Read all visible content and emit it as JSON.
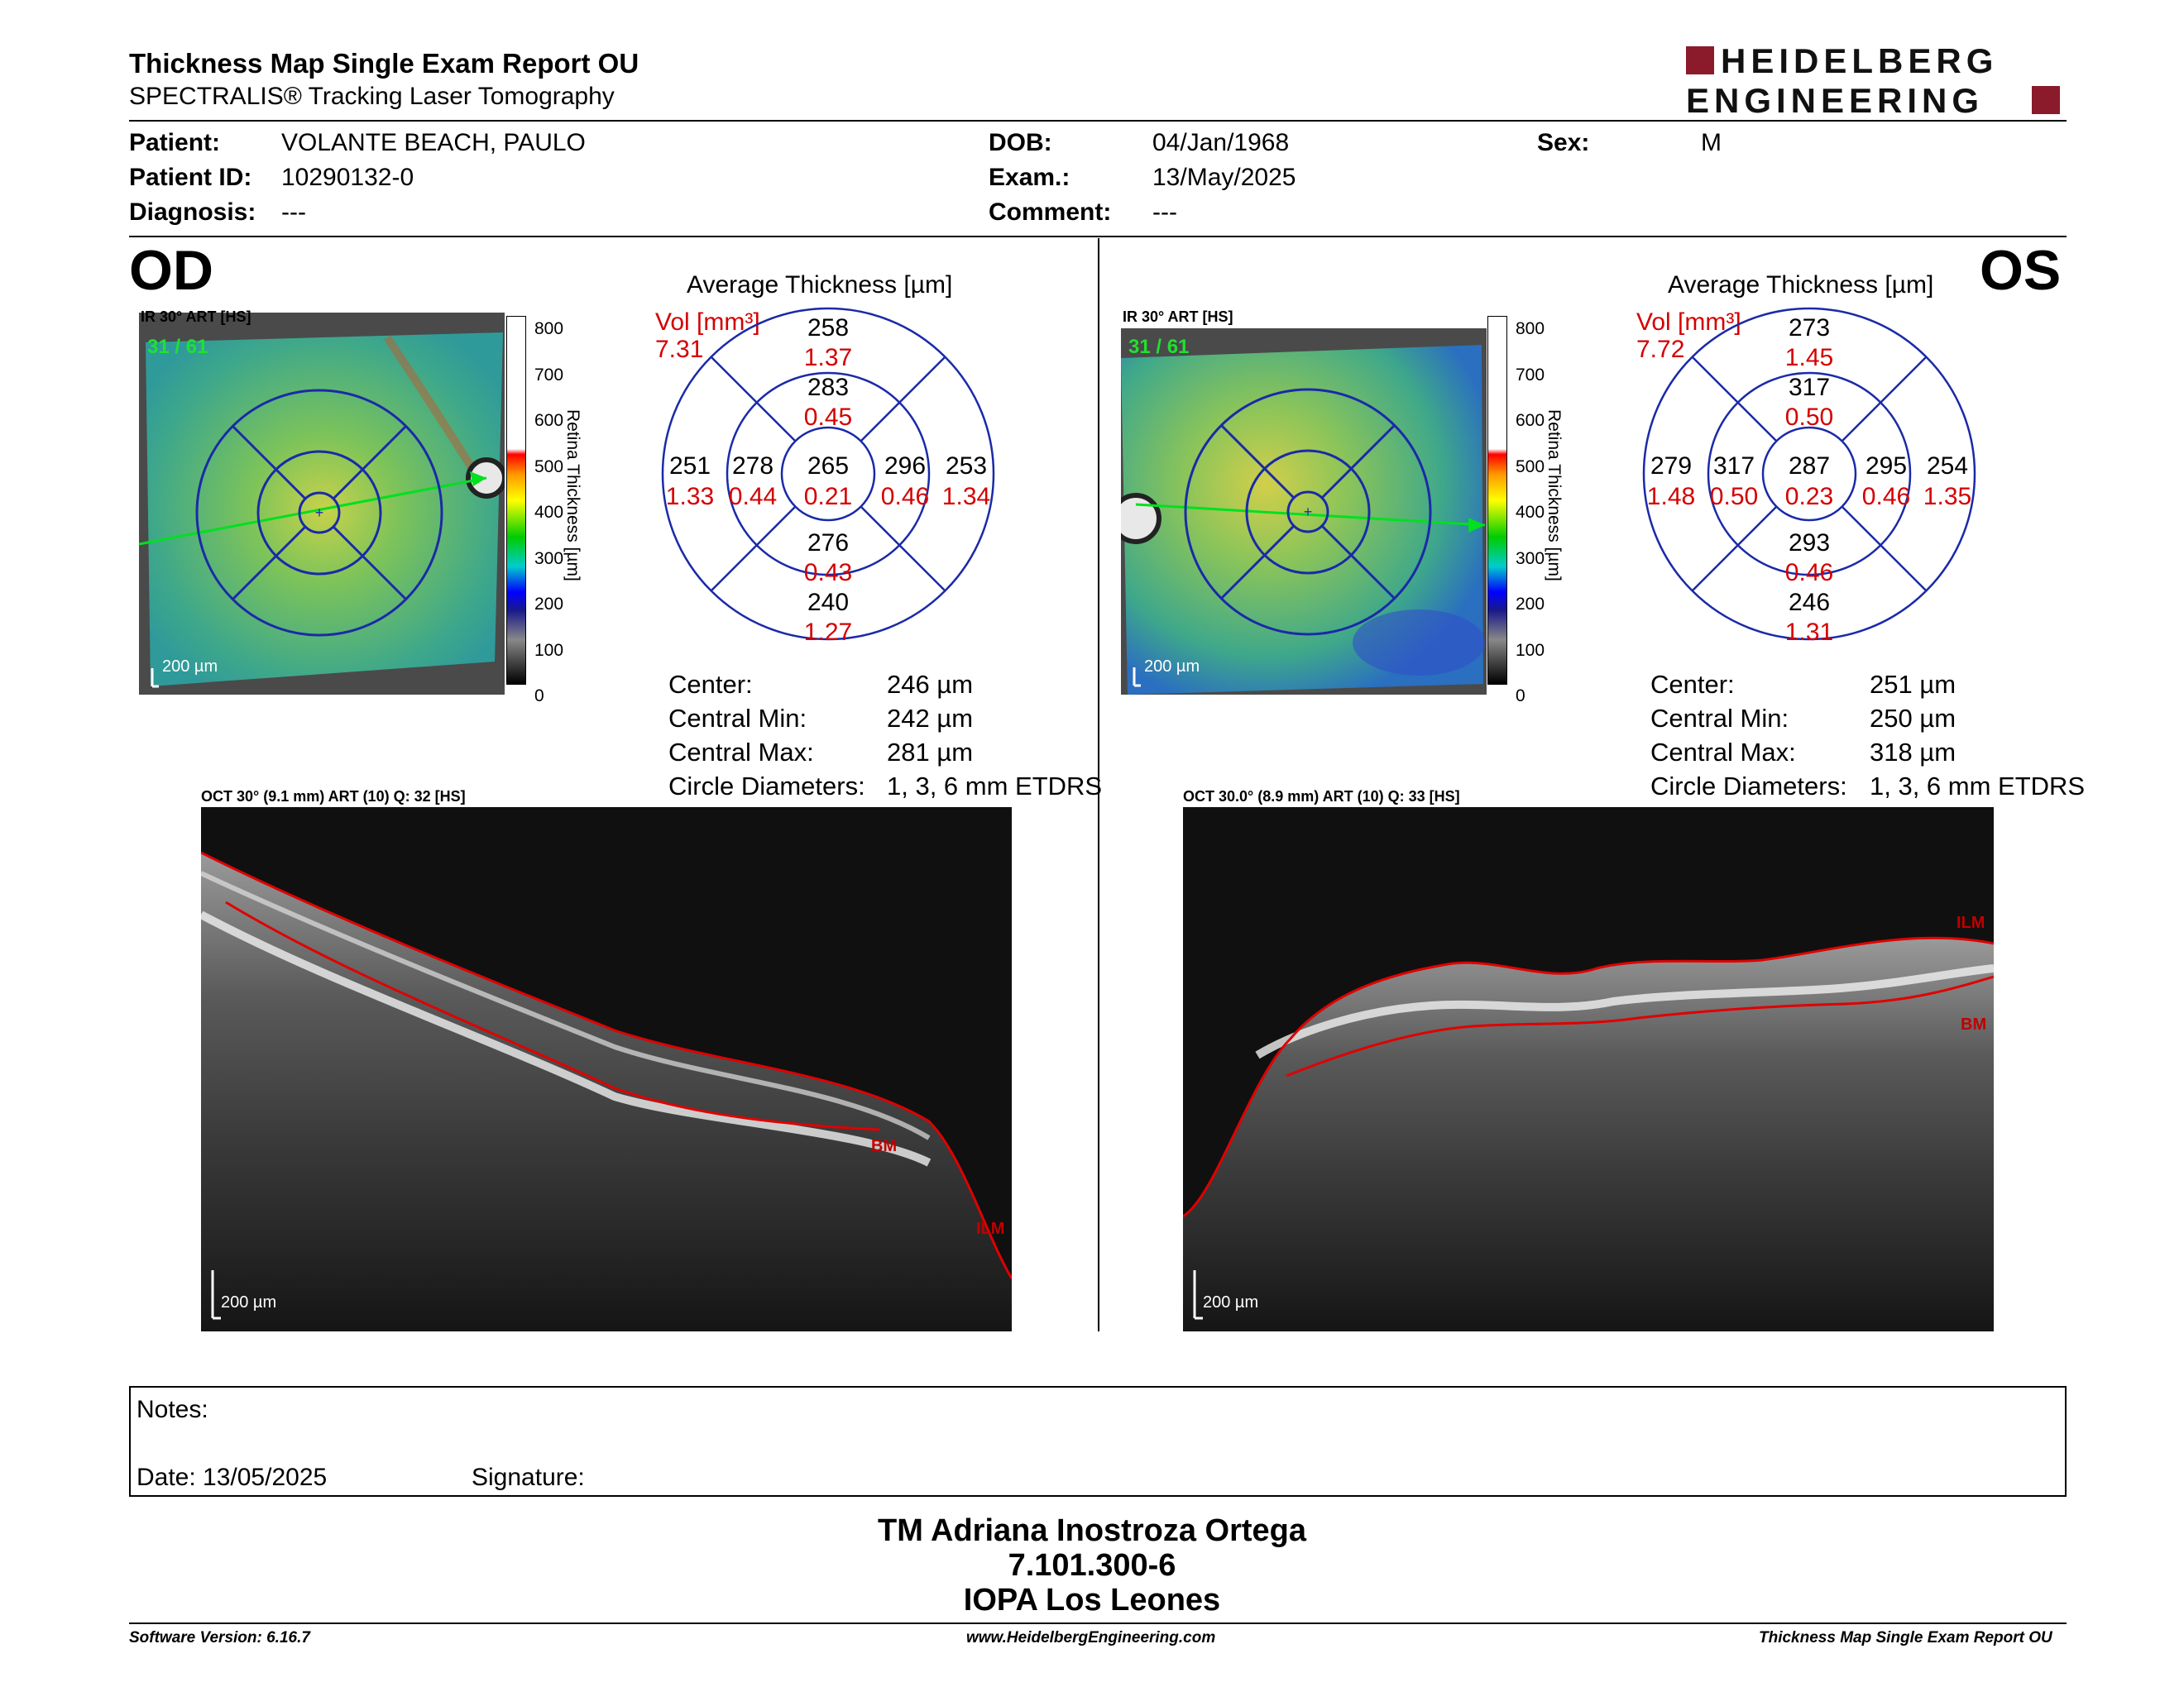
{
  "header": {
    "title": "Thickness Map Single Exam Report OU",
    "subtitle": "SPECTRALIS® Tracking Laser Tomography",
    "logo_line1": "HEIDELBERG",
    "logo_line2": "ENGINEERING"
  },
  "patient": {
    "patient_label": "Patient:",
    "patient_value": "VOLANTE BEACH, PAULO",
    "id_label": "Patient ID:",
    "id_value": "10290132-0",
    "diagnosis_label": "Diagnosis:",
    "diagnosis_value": "---",
    "dob_label": "DOB:",
    "dob_value": "04/Jan/1968",
    "exam_label": "Exam.:",
    "exam_value": "13/May/2025",
    "comment_label": "Comment:",
    "comment_value": "---",
    "sex_label": "Sex:",
    "sex_value": "M"
  },
  "scale": {
    "ticks": [
      "800",
      "700",
      "600",
      "500",
      "400",
      "300",
      "200",
      "100",
      "0"
    ],
    "label": "Retina Thickness [µm]"
  },
  "od": {
    "eye": "OD",
    "ir_label": "IR 30° ART [HS]",
    "frame": "31 / 61",
    "scalebar": "200 µm",
    "avg_title": "Average Thickness [µm]",
    "vol_label": "Vol [mm³]",
    "vol_total": "7.31",
    "center_thick": "265",
    "center_vol": "0.21",
    "inner_sup_t": "283",
    "inner_sup_v": "0.45",
    "inner_inf_t": "276",
    "inner_inf_v": "0.43",
    "inner_left_t": "278",
    "inner_left_v": "0.44",
    "inner_right_t": "296",
    "inner_right_v": "0.46",
    "outer_sup_t": "258",
    "outer_sup_v": "1.37",
    "outer_inf_t": "240",
    "outer_inf_v": "1.27",
    "outer_left_t": "251",
    "outer_left_v": "1.33",
    "outer_right_t": "253",
    "outer_right_v": "1.34",
    "stats": {
      "center_label": "Center:",
      "center_value": "246 µm",
      "min_label": "Central Min:",
      "min_value": "242 µm",
      "max_label": "Central Max:",
      "max_value": "281 µm",
      "circ_label": "Circle Diameters:",
      "circ_value": "1, 3, 6 mm ETDRS"
    },
    "oct_label": "OCT 30° (9.1 mm) ART (10) Q: 32 [HS]",
    "oct_scalebar": "200 µm",
    "bm_label": "BM",
    "ilm_label": "ILM"
  },
  "os": {
    "eye": "OS",
    "ir_label": "IR 30° ART [HS]",
    "frame": "31 / 61",
    "scalebar": "200 µm",
    "avg_title": "Average Thickness [µm]",
    "vol_label": "Vol [mm³]",
    "vol_total": "7.72",
    "center_thick": "287",
    "center_vol": "0.23",
    "inner_sup_t": "317",
    "inner_sup_v": "0.50",
    "inner_inf_t": "293",
    "inner_inf_v": "0.46",
    "inner_left_t": "317",
    "inner_left_v": "0.50",
    "inner_right_t": "295",
    "inner_right_v": "0.46",
    "outer_sup_t": "273",
    "outer_sup_v": "1.45",
    "outer_inf_t": "246",
    "outer_inf_v": "1.31",
    "outer_left_t": "279",
    "outer_left_v": "1.48",
    "outer_right_t": "254",
    "outer_right_v": "1.35",
    "stats": {
      "center_label": "Center:",
      "center_value": "251 µm",
      "min_label": "Central Min:",
      "min_value": "250 µm",
      "max_label": "Central Max:",
      "max_value": "318 µm",
      "circ_label": "Circle Diameters:",
      "circ_value": "1, 3, 6 mm ETDRS"
    },
    "oct_label": "OCT 30.0° (8.9 mm) ART (10) Q: 33 [HS]",
    "oct_scalebar": "200 µm",
    "ilm_label": "ILM",
    "bm_label": "BM"
  },
  "notes": {
    "notes_label": "Notes:",
    "date_label": "Date: 13/05/2025",
    "signature_label": "Signature:"
  },
  "doctor": {
    "name": "TM Adriana Inostroza Ortega",
    "rut": "7.101.300-6",
    "clinic": "IOPA Los Leones"
  },
  "footer": {
    "software": "Software Version: 6.16.7",
    "website": "www.HeidelbergEngineering.com",
    "report": "Thickness Map Single Exam Report OU"
  },
  "colors": {
    "volume_red": "#d40000",
    "grid_blue": "#1a2aa8",
    "logo_red": "#8b1a2b"
  }
}
